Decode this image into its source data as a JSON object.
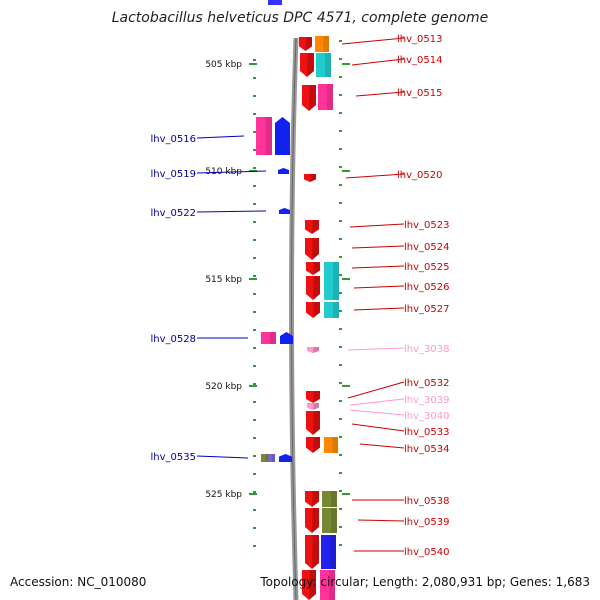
{
  "title": "Lactobacillus helveticus DPC 4571, complete genome",
  "footer": {
    "accession": "Accession: NC_010080",
    "summary": "Topology: circular; Length: 2,080,931 bp; Genes: 1,683"
  },
  "ticks": [
    {
      "label": "505 kbp",
      "pos_kbp": 505
    },
    {
      "label": "510 kbp",
      "pos_kbp": 510
    },
    {
      "label": "515 kbp",
      "pos_kbp": 515
    },
    {
      "label": "520 kbp",
      "pos_kbp": 520
    },
    {
      "label": "525 kbp",
      "pos_kbp": 525
    }
  ],
  "genes_forward": [
    {
      "label": "lhv_0513",
      "color": "#cc0000"
    },
    {
      "label": "lhv_0514",
      "color": "#cc0000"
    },
    {
      "label": "lhv_0515",
      "color": "#cc0000"
    },
    {
      "label": "lhv_0520",
      "color": "#cc0000"
    },
    {
      "label": "lhv_0523",
      "color": "#cc0000"
    },
    {
      "label": "lhv_0524",
      "color": "#cc0000"
    },
    {
      "label": "lhv_0525",
      "color": "#cc0000"
    },
    {
      "label": "lhv_0526",
      "color": "#cc0000"
    },
    {
      "label": "lhv_0527",
      "color": "#cc0000"
    },
    {
      "label": "lhv_3038",
      "color": "#ff99cc"
    },
    {
      "label": "lhv_0532",
      "color": "#cc0000"
    },
    {
      "label": "lhv_3039",
      "color": "#ff99cc"
    },
    {
      "label": "lhv_3040",
      "color": "#ff99cc"
    },
    {
      "label": "lhv_0533",
      "color": "#cc0000"
    },
    {
      "label": "lhv_0534",
      "color": "#cc0000"
    },
    {
      "label": "lhv_0538",
      "color": "#cc0000"
    },
    {
      "label": "lhv_0539",
      "color": "#cc0000"
    },
    {
      "label": "lhv_0540",
      "color": "#cc0000"
    }
  ],
  "genes_reverse": [
    {
      "label": "lhv_0516",
      "color": "#000099"
    },
    {
      "label": "lhv_0519",
      "color": "#000099"
    },
    {
      "label": "lhv_0522",
      "color": "#000099"
    },
    {
      "label": "lhv_0528",
      "color": "#000099"
    },
    {
      "label": "lhv_0535",
      "color": "#000099"
    }
  ]
}
